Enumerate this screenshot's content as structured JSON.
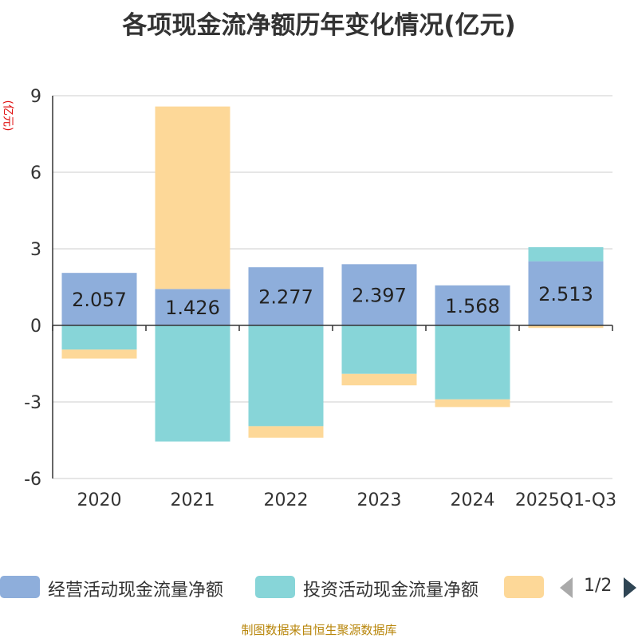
{
  "chart_data": {
    "type": "bar",
    "stacked": true,
    "title": "各项现金流净额历年变化情况(亿元)",
    "ylabel": "(亿元)",
    "xlabel": "",
    "ylim": [
      -6,
      9
    ],
    "yticks": [
      -6,
      -3,
      0,
      3,
      6,
      9
    ],
    "grid": true,
    "categories": [
      "2020",
      "2021",
      "2022",
      "2023",
      "2024",
      "2025Q1-Q3"
    ],
    "series": [
      {
        "name": "经营活动现金流量净额",
        "color": "#8eaedb",
        "values": [
          2.057,
          1.426,
          2.277,
          2.397,
          1.568,
          2.513
        ],
        "data_labels": [
          "2.057",
          "1.426",
          "2.277",
          "2.397",
          "1.568",
          "2.513"
        ]
      },
      {
        "name": "投资活动现金流量净额",
        "color": "#87d5d8",
        "values": [
          -0.95,
          -4.55,
          -3.95,
          -1.9,
          -2.9,
          0.55
        ]
      },
      {
        "name": "",
        "color": "#fdd898",
        "values": [
          -0.35,
          7.15,
          -0.45,
          -0.45,
          -0.3,
          -0.1
        ]
      }
    ]
  },
  "legend": {
    "items": [
      {
        "label": "经营活动现金流量净额",
        "color": "#8eaedb"
      },
      {
        "label": "投资活动现金流量净额",
        "color": "#87d5d8"
      },
      {
        "label": "",
        "color": "#fdd898"
      }
    ],
    "page_indicator": "1/2"
  },
  "source": "制图数据来自恒生聚源数据库"
}
